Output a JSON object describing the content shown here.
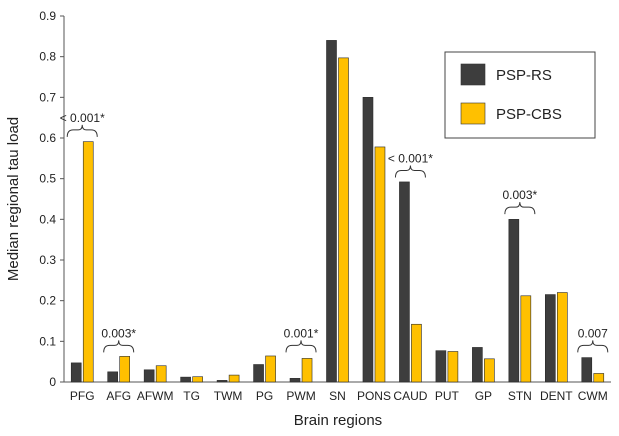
{
  "chart_data": {
    "type": "bar",
    "xlabel": "Brain regions",
    "ylabel": "Median regional tau load",
    "ylim": [
      0,
      0.9
    ],
    "yticks": [
      "0",
      "0.1",
      "0.2",
      "0.3",
      "0.4",
      "0.5",
      "0.6",
      "0.7",
      "0.8",
      "0.9"
    ],
    "grid": false,
    "legend_position": "top-right",
    "categories": [
      "PFG",
      "AFG",
      "AFWM",
      "TG",
      "TWM",
      "PG",
      "PWM",
      "SN",
      "PONS",
      "CAUD",
      "PUT",
      "GP",
      "STN",
      "DENT",
      "CWM"
    ],
    "series": [
      {
        "name": "PSP-RS",
        "color": "#3d3d3d",
        "values": [
          0.047,
          0.025,
          0.03,
          0.012,
          0.004,
          0.043,
          0.009,
          0.84,
          0.7,
          0.492,
          0.077,
          0.085,
          0.4,
          0.215,
          0.06
        ]
      },
      {
        "name": "PSP-CBS",
        "color": "#ffc000",
        "values": [
          0.591,
          0.063,
          0.04,
          0.013,
          0.017,
          0.064,
          0.058,
          0.797,
          0.578,
          0.142,
          0.075,
          0.057,
          0.212,
          0.22,
          0.021
        ]
      }
    ],
    "annotations": [
      {
        "category": "PFG",
        "label": "< 0.001*",
        "y": 0.62
      },
      {
        "category": "AFG",
        "label": "0.003*",
        "y": 0.09
      },
      {
        "category": "PWM",
        "label": "0.001*",
        "y": 0.09
      },
      {
        "category": "CAUD",
        "label": "< 0.001*",
        "y": 0.52
      },
      {
        "category": "STN",
        "label": "0.003*",
        "y": 0.43
      },
      {
        "category": "CWM",
        "label": "0.007",
        "y": 0.09
      }
    ]
  }
}
